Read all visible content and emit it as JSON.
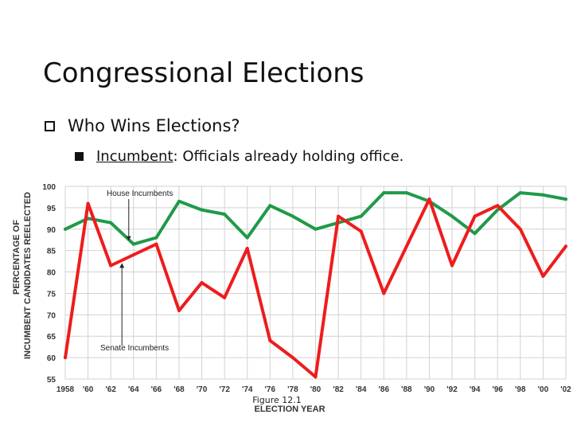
{
  "slide": {
    "title": "Congressional Elections",
    "bullet1": "Who Wins Elections?",
    "bullet2_term": "Incumbent",
    "bullet2_rest": ": Officials already holding office."
  },
  "chart_data": {
    "type": "line",
    "xlabel": "ELECTION YEAR",
    "ylabel_line1": "PERCENTAGE OF",
    "ylabel_line2": "INCUMBENT CANDIDATES REELECTED",
    "caption": "Figure 12.1",
    "categories": [
      "1958",
      "'60",
      "'62",
      "'64",
      "'66",
      "'68",
      "'70",
      "'72",
      "'74",
      "'76",
      "'78",
      "'80",
      "'82",
      "'84",
      "'86",
      "'88",
      "'90",
      "'92",
      "'94",
      "'96",
      "'98",
      "'00",
      "'02"
    ],
    "yticks": [
      55,
      60,
      65,
      70,
      75,
      80,
      85,
      90,
      95,
      100
    ],
    "ylim": [
      55,
      100
    ],
    "grid": true,
    "series": [
      {
        "name": "House Incumbents",
        "color": "#1f9a4a",
        "values": [
          90,
          92.5,
          91.5,
          86.5,
          88,
          96.5,
          94.5,
          93.5,
          88,
          95.5,
          93,
          90,
          91.5,
          93,
          98.5,
          98.5,
          96.5,
          93,
          89,
          94.5,
          98.5,
          98,
          97
        ]
      },
      {
        "name": "Senate Incumbents",
        "color": "#ee1c1c",
        "values": [
          60,
          96,
          81.5,
          84,
          86.5,
          71,
          77.5,
          74,
          85.5,
          64,
          60,
          55.5,
          93,
          89.5,
          75,
          86,
          97,
          81.5,
          93,
          95.5,
          90,
          79,
          86
        ]
      }
    ],
    "annotations": [
      "House Incumbents",
      "Senate Incumbents"
    ]
  }
}
